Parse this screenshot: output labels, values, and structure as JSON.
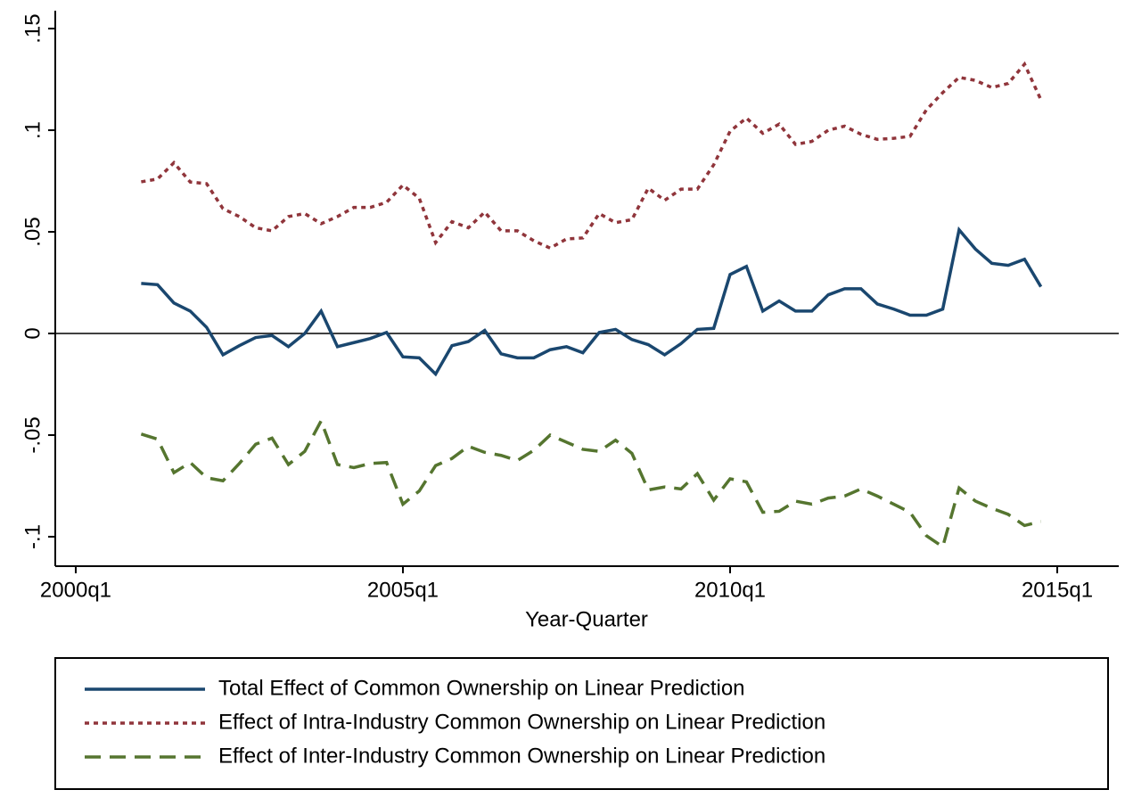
{
  "chart_data": {
    "type": "line",
    "x_label": "Year-Quarter",
    "x": [
      "2001q1",
      "2001q2",
      "2001q3",
      "2001q4",
      "2002q1",
      "2002q2",
      "2002q3",
      "2002q4",
      "2003q1",
      "2003q2",
      "2003q3",
      "2003q4",
      "2004q1",
      "2004q2",
      "2004q3",
      "2004q4",
      "2005q1",
      "2005q2",
      "2005q3",
      "2005q4",
      "2006q1",
      "2006q2",
      "2006q3",
      "2006q4",
      "2007q1",
      "2007q2",
      "2007q3",
      "2007q4",
      "2008q1",
      "2008q2",
      "2008q3",
      "2008q4",
      "2009q1",
      "2009q2",
      "2009q3",
      "2009q4",
      "2010q1",
      "2010q2",
      "2010q3",
      "2010q4",
      "2011q1",
      "2011q2",
      "2011q3",
      "2011q4",
      "2012q1",
      "2012q2",
      "2012q3",
      "2012q4",
      "2013q1",
      "2013q2",
      "2013q3",
      "2013q4",
      "2014q1",
      "2014q2",
      "2014q3",
      "2014q4"
    ],
    "series": [
      {
        "name": "Total Effect of Common Ownership on Linear Prediction",
        "color": "#1a476f",
        "style": "solid",
        "values": [
          0.0246,
          0.024,
          0.015,
          0.011,
          0.003,
          -0.0105,
          -0.006,
          -0.002,
          -0.001,
          -0.0065,
          0,
          0.011,
          -0.0065,
          -0.0045,
          -0.0025,
          0.0005,
          -0.0115,
          -0.012,
          -0.02,
          -0.006,
          -0.004,
          0.0015,
          -0.01,
          -0.012,
          -0.012,
          -0.008,
          -0.0065,
          -0.0095,
          0.0005,
          0.002,
          -0.003,
          -0.0055,
          -0.0105,
          -0.005,
          0.002,
          0.0025,
          0.029,
          0.033,
          0.011,
          0.016,
          0.011,
          0.011,
          0.019,
          0.022,
          0.022,
          0.0145,
          0.012,
          0.009,
          0.009,
          0.012,
          0.051,
          0.0415,
          0.0345,
          0.0335,
          0.0365,
          0.023
        ]
      },
      {
        "name": "Effect of Intra-Industry Common Ownership on Linear Prediction",
        "color": "#90353b",
        "style": "dot",
        "values": [
          0.0746,
          0.076,
          0.084,
          0.0745,
          0.0737,
          0.0614,
          0.0575,
          0.052,
          0.0505,
          0.0575,
          0.059,
          0.054,
          0.0575,
          0.062,
          0.062,
          0.0645,
          0.073,
          0.0665,
          0.0447,
          0.055,
          0.052,
          0.0597,
          0.0505,
          0.0505,
          0.0456,
          0.042,
          0.0465,
          0.047,
          0.059,
          0.0545,
          0.056,
          0.0715,
          0.0655,
          0.071,
          0.071,
          0.083,
          0.0995,
          0.106,
          0.0985,
          0.103,
          0.093,
          0.0945,
          0.1,
          0.102,
          0.098,
          0.0955,
          0.096,
          0.097,
          0.11,
          0.1185,
          0.126,
          0.1245,
          0.121,
          0.123,
          0.1325,
          0.115
        ]
      },
      {
        "name": "Effect of Inter-Industry Common Ownership on Linear Prediction",
        "color": "#55752f",
        "style": "dash",
        "values": [
          -0.0495,
          -0.052,
          -0.0685,
          -0.0635,
          -0.071,
          -0.0725,
          -0.064,
          -0.0545,
          -0.0515,
          -0.0645,
          -0.058,
          -0.043,
          -0.0645,
          -0.066,
          -0.064,
          -0.0635,
          -0.084,
          -0.0775,
          -0.065,
          -0.0615,
          -0.0555,
          -0.0585,
          -0.06,
          -0.0625,
          -0.0575,
          -0.05,
          -0.0535,
          -0.057,
          -0.058,
          -0.0525,
          -0.059,
          -0.077,
          -0.0755,
          -0.0765,
          -0.069,
          -0.082,
          -0.0715,
          -0.073,
          -0.088,
          -0.0875,
          -0.0825,
          -0.084,
          -0.081,
          -0.08,
          -0.0765,
          -0.08,
          -0.084,
          -0.088,
          -0.0995,
          -0.105,
          -0.076,
          -0.0825,
          -0.086,
          -0.089,
          -0.0945,
          -0.0925
        ]
      }
    ],
    "xlim": [
      1999.687,
      2015.94
    ],
    "xticks": [
      {
        "value": 2000,
        "label": "2000q1"
      },
      {
        "value": 2005,
        "label": "2005q1"
      },
      {
        "value": 2010,
        "label": "2010q1"
      },
      {
        "value": 2015,
        "label": "2015q1"
      }
    ],
    "ylim": [
      -0.1145,
      0.1588
    ],
    "yticks": [
      {
        "value": -0.1,
        "label": "-.1"
      },
      {
        "value": -0.05,
        "label": "-.05"
      },
      0,
      {
        "value": 0.05,
        "label": ".05"
      },
      {
        "value": 0.1,
        "label": ".1"
      },
      {
        "value": 0.15,
        "label": ".15"
      }
    ],
    "yline": 0,
    "legend": "bottom"
  }
}
